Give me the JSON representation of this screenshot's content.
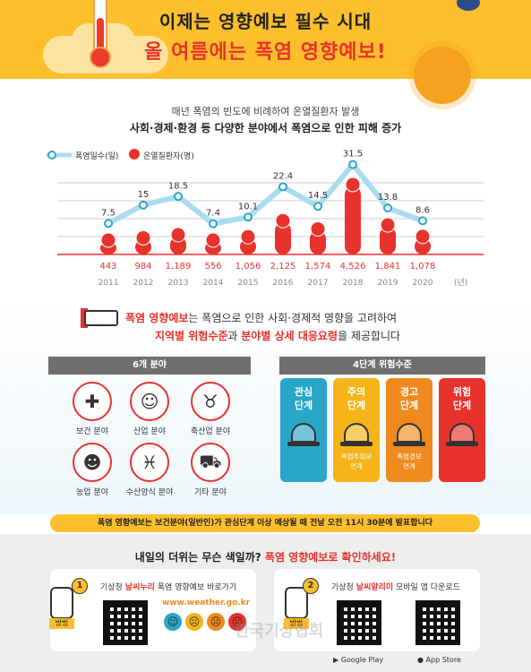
{
  "header": {
    "title_line1": "이제는 영향예보 필수 시대",
    "title_line2": "올 여름에는 폭염 영향예보!"
  },
  "intro": {
    "line1": "매년 폭염의 빈도에 비례하여 온열질환자 발생",
    "line2": "사회·경제·환경 등 다양한 분야에서 폭염으로 인한 피해 증가"
  },
  "chart_data": {
    "type": "line",
    "categories": [
      "2011",
      "2012",
      "2013",
      "2014",
      "2015",
      "2016",
      "2017",
      "2018",
      "2019",
      "2020"
    ],
    "x_unit": "(년)",
    "series": [
      {
        "name": "폭염일수(일)",
        "values": [
          7.5,
          15,
          18.5,
          7.4,
          10.1,
          22.4,
          14.5,
          31.5,
          13.8,
          8.6
        ],
        "color": "#a9dcee"
      },
      {
        "name": "온열질환자(명)",
        "values": [
          443,
          984,
          1189,
          556,
          1056,
          2125,
          1574,
          4526,
          1841,
          1078
        ],
        "color": "#e8322c"
      }
    ],
    "value_labels": [
      "7.5",
      "15",
      "18.5",
      "7.4",
      "10.1",
      "22.4",
      "14.5",
      "31.5",
      "13.8",
      "8.6"
    ],
    "patient_labels": [
      "443",
      "984",
      "1,189",
      "556",
      "1,056",
      "2,125",
      "1,574",
      "4,526",
      "1,841",
      "1,078"
    ],
    "legend_position": "top-left",
    "grid": true
  },
  "info": {
    "brand": "폭염 영향예보",
    "line1_rest": "는 폭염으로 인한 사회·경제적 영향을 고려하여",
    "line2_a": "지역별 위험수준",
    "line2_b": "과 ",
    "line2_c": "분야별 상세 대응요령",
    "line2_d": "을 제공합니다"
  },
  "fields": {
    "title": "6개 분야",
    "items": [
      {
        "label": "보건 분야",
        "icon": "first-aid-icon",
        "glyph": "✚"
      },
      {
        "label": "산업 분야",
        "icon": "worker-icon",
        "glyph": "☺"
      },
      {
        "label": "축산업 분야",
        "icon": "pig-icon",
        "glyph": "♉"
      },
      {
        "label": "농업 분야",
        "icon": "farmer-icon",
        "glyph": "☻"
      },
      {
        "label": "수산양식 분야",
        "icon": "fish-icon",
        "glyph": "♓"
      },
      {
        "label": "기타 분야",
        "icon": "car-icon",
        "glyph": "⛟"
      }
    ]
  },
  "levels": {
    "title": "4단계 위험수준",
    "items": [
      {
        "name_line1": "관심",
        "name_line2": "단계",
        "sub_line1": "",
        "sub_line2": "",
        "color": "#2aa6c8"
      },
      {
        "name_line1": "주의",
        "name_line2": "단계",
        "sub_line1": "폭염주의보",
        "sub_line2": "연계",
        "color": "#f4b41a"
      },
      {
        "name_line1": "경고",
        "name_line2": "단계",
        "sub_line1": "폭염경보",
        "sub_line2": "연계",
        "color": "#f08a1e"
      },
      {
        "name_line1": "위험",
        "name_line2": "단계",
        "sub_line1": "",
        "sub_line2": "",
        "color": "#e8322c"
      }
    ]
  },
  "banner": "폭염 영향예보는 보건분야(일반인)가 관심단계 이상 예상될 때 전날 오전 11시 30분에 발표합니다",
  "bottom": {
    "question_a": "내일의 더위는 무슨 색일까? ",
    "question_b": "폭염 영향예보로 확인하세요!",
    "step1": {
      "num": "1",
      "tag": "방법",
      "text_a": "기상청 ",
      "text_b": "날씨누리",
      "text_c": " 폭염 영향예보 바로가기",
      "url": "www.weather.go.kr"
    },
    "step2": {
      "num": "2",
      "tag": "방법",
      "text_a": "기상청 ",
      "text_b": "날씨알리미",
      "text_c": " 모바일 앱 다운로드",
      "google": "Google Play",
      "apple": "App Store"
    },
    "watermark": "한국기상협회"
  }
}
